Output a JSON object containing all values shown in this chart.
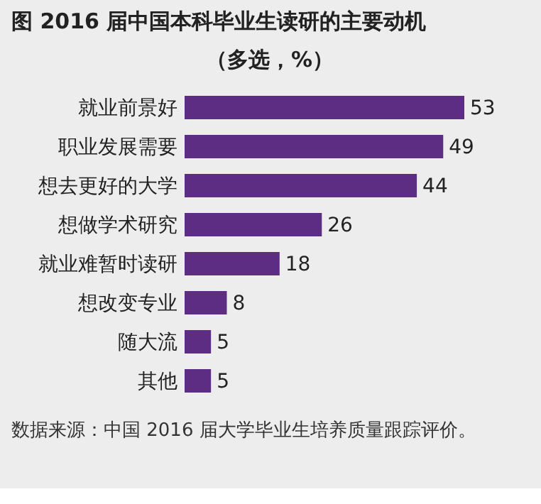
{
  "chart_data": {
    "type": "bar",
    "orientation": "horizontal",
    "title": "图  2016 届中国本科毕业生读研的主要动机",
    "subtitle": "（多选，%）",
    "categories": [
      "就业前景好",
      "职业发展需要",
      "想去更好的大学",
      "想做学术研究",
      "就业难暂时读研",
      "想改变专业",
      "随大流",
      "其他"
    ],
    "values": [
      53,
      49,
      44,
      26,
      18,
      8,
      5,
      5
    ],
    "color": "#5c2d82",
    "data_labels": true,
    "annotations": [
      "数据来源：中国 2016 届大学毕业生培养质量跟踪评价。"
    ]
  }
}
